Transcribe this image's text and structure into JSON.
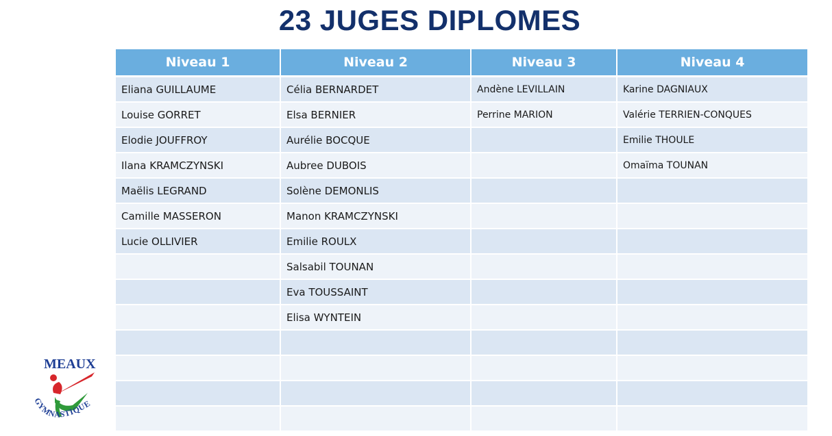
{
  "title": "23 JUGES DIPLOMES",
  "table": {
    "headers": [
      "Niveau 1",
      "Niveau 2",
      "Niveau 3",
      "Niveau 4"
    ],
    "rows": [
      [
        "Eliana GUILLAUME",
        "Célia BERNARDET",
        "Andène LEVILLAIN",
        "Karine DAGNIAUX"
      ],
      [
        "Louise GORRET",
        "Elsa BERNIER",
        "Perrine MARION",
        "Valérie TERRIEN-CONQUES"
      ],
      [
        "Elodie JOUFFROY",
        "Aurélie BOCQUE",
        "",
        "Emilie THOULE"
      ],
      [
        "Ilana KRAMCZYNSKI",
        "Aubree DUBOIS",
        "",
        "Omaïma TOUNAN"
      ],
      [
        "Maëlis LEGRAND",
        "Solène DEMONLIS",
        "",
        ""
      ],
      [
        "Camille MASSERON",
        "Manon KRAMCZYNSKI",
        "",
        ""
      ],
      [
        "Lucie OLLIVIER",
        "Emilie ROULX",
        "",
        ""
      ],
      [
        "",
        "Salsabil TOUNAN",
        "",
        ""
      ],
      [
        "",
        "Eva TOUSSAINT",
        "",
        ""
      ],
      [
        "",
        "Elisa WYNTEIN",
        "",
        ""
      ],
      [
        "",
        "",
        "",
        ""
      ],
      [
        "",
        "",
        "",
        ""
      ],
      [
        "",
        "",
        "",
        ""
      ],
      [
        "",
        "",
        "",
        ""
      ]
    ]
  },
  "logo": {
    "top_text": "MEAUX",
    "bottom_text": "GYMNASTIQUE",
    "colors": {
      "blue": "#1f3f95",
      "red": "#d7262b",
      "green": "#2f9a3a"
    }
  },
  "colors": {
    "title": "#13306b",
    "header_bg": "#6aaedf",
    "row_odd": "#dbe6f3",
    "row_even": "#eef3f9"
  }
}
